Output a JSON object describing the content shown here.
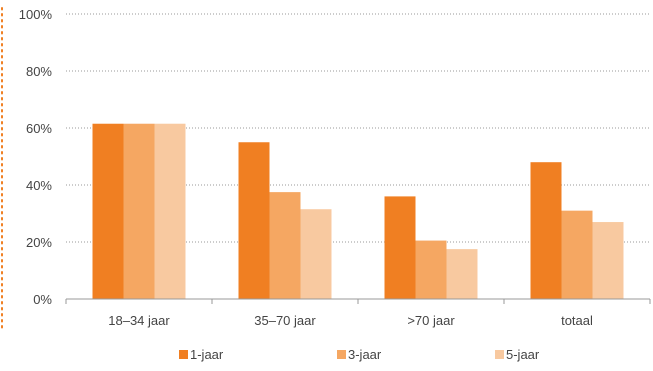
{
  "chart_data": {
    "type": "bar",
    "title": "",
    "xlabel": "",
    "ylabel": "",
    "categories": [
      "18–34 jaar",
      "35–70 jaar",
      ">70 jaar",
      "totaal"
    ],
    "series": [
      {
        "name": "1-jaar",
        "values": [
          61.5,
          55,
          36,
          48
        ],
        "color": "#F07F22"
      },
      {
        "name": "3-jaar",
        "values": [
          61.5,
          37.5,
          20.5,
          31
        ],
        "color": "#F5A762"
      },
      {
        "name": "5-jaar",
        "values": [
          61.5,
          31.5,
          17.5,
          27
        ],
        "color": "#F8C9A0"
      }
    ],
    "ylim": [
      0,
      100
    ],
    "yticks": [
      0,
      20,
      40,
      60,
      80,
      100
    ],
    "ytick_labels": [
      "0%",
      "20%",
      "40%",
      "60%",
      "80%",
      "100%"
    ],
    "grid": "horizontal-dotted",
    "legend_position": "bottom",
    "colors": {
      "axis": "#999999",
      "grid": "#9a9a9a",
      "text": "#444444",
      "accent_border": "#F07F22"
    }
  }
}
